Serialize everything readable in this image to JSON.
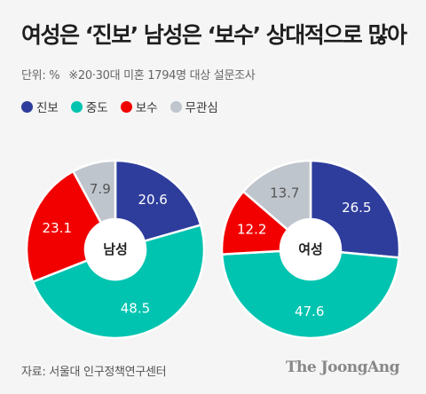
{
  "title": "여성은 ‘진보’ 남성은 ‘보수’ 상대적으로 많아",
  "unit": "단위: %",
  "note": "※20·30대 미혼 1794명 대상 설문조사",
  "source": "자료: 서울대 인구정책연구센터",
  "brand": "The JoongAng",
  "colors": {
    "진보": "#2e3d9c",
    "중도": "#00c4b0",
    "보수": "#f20000",
    "무관심": "#bfc5cc"
  },
  "chart_data": [
    {
      "type": "pie",
      "donut": true,
      "title": "남성",
      "categories": [
        "진보",
        "중도",
        "보수",
        "무관심"
      ],
      "values": [
        20.6,
        48.5,
        23.1,
        7.9
      ],
      "legend": "top-left"
    },
    {
      "type": "pie",
      "donut": true,
      "title": "여성",
      "categories": [
        "진보",
        "중도",
        "보수",
        "무관심"
      ],
      "values": [
        26.5,
        47.6,
        12.2,
        13.7
      ],
      "legend": "top-left"
    }
  ]
}
